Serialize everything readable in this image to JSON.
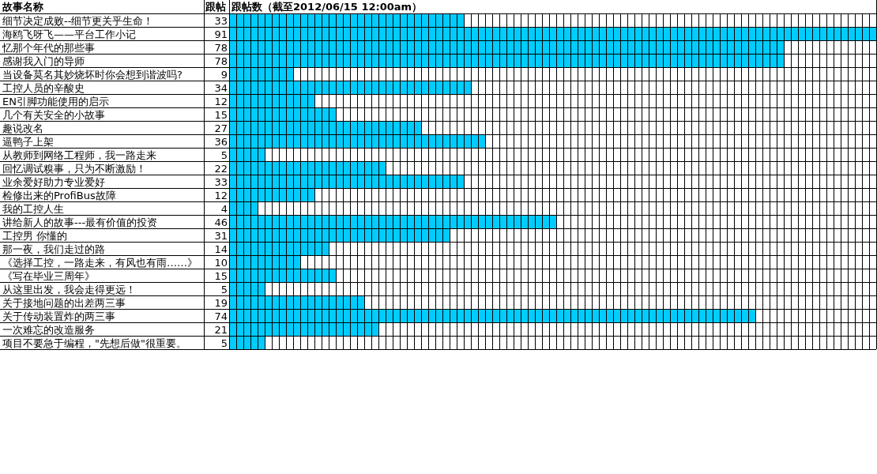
{
  "chart_data": {
    "type": "bar",
    "orientation": "horizontal",
    "title": "跟帖数（截至2012/06/15 12:00am）",
    "ylabel": "故事名称",
    "annotations": [
      "跟帖"
    ],
    "categories": [
      "细节决定成败--细节更关乎生命！",
      "海鸥飞呀飞——平台工作小记",
      "忆那个年代的那些事",
      "感谢我入门的导师",
      "当设备莫名其妙烧坏时你会想到谐波吗?",
      "工控人员的辛酸史",
      "EN引脚功能使用的启示",
      "几个有关安全的小故事",
      "趣说改名",
      "逼鸭子上架",
      "从教师到网络工程师，我一路走来",
      "回忆调试糗事，只为不断激励！",
      "业余爱好助力专业爱好",
      "检修出来的ProfiBus故障",
      "我的工控人生",
      "讲给新人的故事---最有价值的投资",
      "工控男 你懂的",
      "那一夜，我们走过的路",
      "《选择工控，一路走来，有风也有雨……》",
      "《写在毕业三周年》",
      "从这里出发，我会走得更远！",
      "关于接地问题的出差两三事",
      "关于传动装置炸的两三事",
      "一次难忘的改造服务",
      "项目不要急于编程，\"先想后做\"很重要。"
    ],
    "values": [
      33,
      91,
      78,
      78,
      9,
      34,
      12,
      15,
      27,
      36,
      5,
      22,
      33,
      12,
      4,
      46,
      31,
      14,
      10,
      15,
      5,
      19,
      74,
      21,
      5
    ],
    "color": "#00ccff",
    "xlim": [
      0,
      91
    ],
    "grid": true,
    "data_labels": true
  }
}
